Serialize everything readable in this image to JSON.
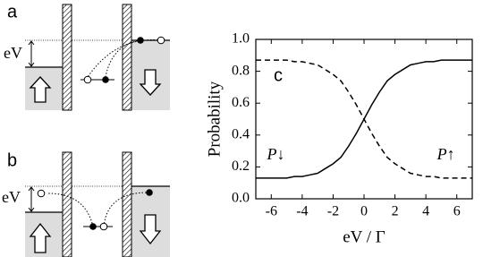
{
  "diagrams": [
    {
      "label": "a",
      "bias_label": "eV"
    },
    {
      "label": "b",
      "bias_label": "eV"
    }
  ],
  "chart_data": {
    "type": "line",
    "panel_label": "c",
    "x_label": "eV / Γ",
    "y_label": "Probability",
    "x": [
      -7,
      -6.5,
      -6,
      -5.5,
      -5,
      -4.5,
      -4,
      -3.5,
      -3,
      -2.5,
      -2,
      -1.5,
      -1,
      -0.5,
      0,
      0.5,
      1,
      1.5,
      2,
      2.5,
      3,
      3.5,
      4,
      4.5,
      5,
      5.5,
      6,
      6.5,
      7
    ],
    "series": [
      {
        "name": "P↓",
        "color": "#000000",
        "style": "solid",
        "values": [
          0.13,
          0.13,
          0.13,
          0.13,
          0.13,
          0.14,
          0.14,
          0.15,
          0.16,
          0.19,
          0.22,
          0.26,
          0.33,
          0.41,
          0.5,
          0.59,
          0.67,
          0.74,
          0.78,
          0.81,
          0.84,
          0.85,
          0.86,
          0.86,
          0.87,
          0.87,
          0.87,
          0.87,
          0.87
        ]
      },
      {
        "name": "P↑",
        "color": "#000000",
        "style": "dashed",
        "values": [
          0.87,
          0.87,
          0.87,
          0.87,
          0.87,
          0.86,
          0.86,
          0.85,
          0.84,
          0.81,
          0.78,
          0.74,
          0.67,
          0.59,
          0.5,
          0.41,
          0.33,
          0.26,
          0.22,
          0.19,
          0.16,
          0.15,
          0.14,
          0.14,
          0.13,
          0.13,
          0.13,
          0.13,
          0.13
        ]
      }
    ],
    "xlim": [
      -7,
      7
    ],
    "xticks": [
      -6,
      -4,
      -2,
      0,
      2,
      4,
      6
    ],
    "ylim": [
      0,
      1
    ],
    "yticks": [
      {
        "value": 0,
        "label": "0.0"
      },
      0.2,
      0.4,
      0.6,
      0.8,
      {
        "value": 1,
        "label": "1.0"
      }
    ]
  }
}
